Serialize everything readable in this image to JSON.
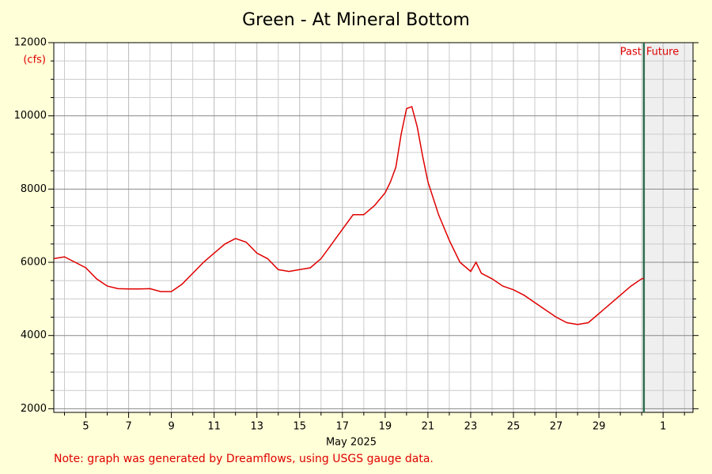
{
  "chart_data": {
    "type": "line",
    "title": "Green - At Mineral Bottom",
    "y_label": "(cfs)",
    "x_label": "May 2025",
    "note": "Note: graph was generated by Dreamflows, using USGS gauge data.",
    "past_label": "Past",
    "future_label": "Future",
    "now_x": 31.1,
    "color": "#e00000",
    "x": [
      3.5,
      4,
      4.5,
      5,
      5.5,
      6,
      6.5,
      7,
      7.5,
      8,
      8.5,
      9,
      9.5,
      10,
      10.5,
      11,
      11.5,
      12,
      12.5,
      13,
      13.5,
      14,
      14.5,
      15,
      15.5,
      16,
      16.5,
      17,
      17.5,
      18,
      18.5,
      19,
      19.25,
      19.5,
      19.75,
      20,
      20.25,
      20.5,
      20.75,
      21,
      21.5,
      22,
      22.5,
      23,
      23.25,
      23.5,
      24,
      24.5,
      25,
      25.5,
      26,
      26.5,
      27,
      27.5,
      28,
      28.5,
      29,
      29.5,
      30,
      30.5,
      31,
      31.1
    ],
    "values": [
      6100,
      6150,
      6000,
      5850,
      5550,
      5350,
      5280,
      5270,
      5270,
      5280,
      5200,
      5200,
      5400,
      5700,
      6000,
      6250,
      6500,
      6650,
      6550,
      6250,
      6100,
      5800,
      5750,
      5800,
      5850,
      6100,
      6500,
      6900,
      7300,
      7300,
      7550,
      7900,
      8200,
      8600,
      9500,
      10200,
      10250,
      9700,
      8900,
      8200,
      7300,
      6600,
      6000,
      5750,
      6000,
      5700,
      5550,
      5350,
      5250,
      5100,
      4900,
      4700,
      4500,
      4350,
      4300,
      4350,
      4600,
      4850,
      5100,
      5350,
      5550,
      5560
    ],
    "xlim": [
      3.5,
      33.4
    ],
    "ylim": [
      1900,
      12000
    ],
    "xticks": [
      5,
      7,
      9,
      11,
      13,
      15,
      17,
      19,
      21,
      23,
      25,
      27,
      29,
      {
        "value": 32,
        "label": "1"
      }
    ],
    "xminorticks": [
      4,
      6,
      8,
      10,
      12,
      14,
      16,
      18,
      20,
      22,
      24,
      26,
      28,
      30,
      31,
      33
    ],
    "yticks": [
      2000,
      4000,
      6000,
      8000,
      10000,
      12000
    ],
    "yminorticks": [
      2500,
      3000,
      3500,
      4500,
      5000,
      5500,
      6500,
      7000,
      7500,
      8500,
      9000,
      9500,
      10500,
      11000,
      11500
    ],
    "grid": true
  }
}
